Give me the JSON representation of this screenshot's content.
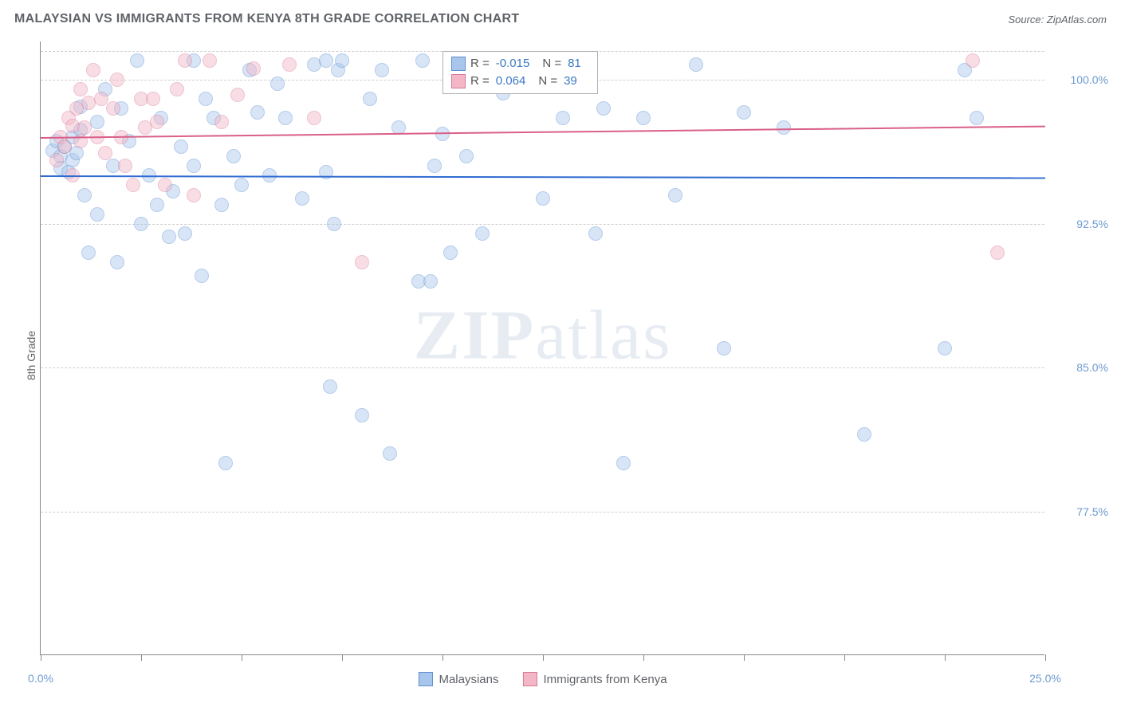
{
  "title": "MALAYSIAN VS IMMIGRANTS FROM KENYA 8TH GRADE CORRELATION CHART",
  "source": "Source: ZipAtlas.com",
  "ylabel": "8th Grade",
  "watermark_a": "ZIP",
  "watermark_b": "atlas",
  "chart": {
    "type": "scatter",
    "xlim": [
      0,
      25
    ],
    "ylim": [
      70,
      102
    ],
    "background_color": "#ffffff",
    "grid_color": "#cfcfcf",
    "yticks": [
      {
        "v": 100.0,
        "label": "100.0%"
      },
      {
        "v": 92.5,
        "label": "92.5%"
      },
      {
        "v": 85.0,
        "label": "85.0%"
      },
      {
        "v": 77.5,
        "label": "77.5%"
      }
    ],
    "xticks_major": [
      0,
      5,
      10,
      15,
      20,
      25
    ],
    "xticks_minor": [
      2.5,
      7.5,
      12.5,
      17.5,
      22.5
    ],
    "xlabels": [
      {
        "v": 0,
        "label": "0.0%"
      },
      {
        "v": 25,
        "label": "25.0%"
      }
    ],
    "marker_radius": 9,
    "marker_opacity": 0.45,
    "series": [
      {
        "name": "Malaysians",
        "fill": "#a8c6ec",
        "stroke": "#5d8fd0",
        "R": "-0.015",
        "N": "81",
        "regression": {
          "y0": 95.0,
          "y1": 94.9,
          "color": "#2f6bd0",
          "width": 2
        },
        "points": [
          {
            "x": 0.3,
            "y": 96.3
          },
          {
            "x": 0.4,
            "y": 96.8
          },
          {
            "x": 0.5,
            "y": 96.0
          },
          {
            "x": 0.5,
            "y": 95.4
          },
          {
            "x": 0.6,
            "y": 96.5
          },
          {
            "x": 0.7,
            "y": 95.2
          },
          {
            "x": 0.8,
            "y": 97.0
          },
          {
            "x": 0.8,
            "y": 95.8
          },
          {
            "x": 0.9,
            "y": 96.2
          },
          {
            "x": 1.0,
            "y": 98.6
          },
          {
            "x": 1.0,
            "y": 97.4
          },
          {
            "x": 1.1,
            "y": 94.0
          },
          {
            "x": 1.2,
            "y": 91.0
          },
          {
            "x": 1.4,
            "y": 93.0
          },
          {
            "x": 1.4,
            "y": 97.8
          },
          {
            "x": 1.6,
            "y": 99.5
          },
          {
            "x": 1.8,
            "y": 95.5
          },
          {
            "x": 1.9,
            "y": 90.5
          },
          {
            "x": 2.0,
            "y": 98.5
          },
          {
            "x": 2.2,
            "y": 96.8
          },
          {
            "x": 2.4,
            "y": 101.0
          },
          {
            "x": 2.5,
            "y": 92.5
          },
          {
            "x": 2.7,
            "y": 95.0
          },
          {
            "x": 2.9,
            "y": 93.5
          },
          {
            "x": 3.0,
            "y": 98.0
          },
          {
            "x": 3.2,
            "y": 91.8
          },
          {
            "x": 3.3,
            "y": 94.2
          },
          {
            "x": 3.5,
            "y": 96.5
          },
          {
            "x": 3.6,
            "y": 92.0
          },
          {
            "x": 3.8,
            "y": 101.0
          },
          {
            "x": 3.8,
            "y": 95.5
          },
          {
            "x": 4.0,
            "y": 89.8
          },
          {
            "x": 4.1,
            "y": 99.0
          },
          {
            "x": 4.3,
            "y": 98.0
          },
          {
            "x": 4.5,
            "y": 93.5
          },
          {
            "x": 4.6,
            "y": 80.0
          },
          {
            "x": 4.8,
            "y": 96.0
          },
          {
            "x": 5.0,
            "y": 94.5
          },
          {
            "x": 5.2,
            "y": 100.5
          },
          {
            "x": 5.4,
            "y": 98.3
          },
          {
            "x": 5.7,
            "y": 95.0
          },
          {
            "x": 5.9,
            "y": 99.8
          },
          {
            "x": 6.1,
            "y": 98.0
          },
          {
            "x": 6.5,
            "y": 93.8
          },
          {
            "x": 6.8,
            "y": 100.8
          },
          {
            "x": 7.1,
            "y": 95.2
          },
          {
            "x": 7.1,
            "y": 101.0
          },
          {
            "x": 7.2,
            "y": 84.0
          },
          {
            "x": 7.3,
            "y": 92.5
          },
          {
            "x": 7.4,
            "y": 100.5
          },
          {
            "x": 7.5,
            "y": 101.0
          },
          {
            "x": 8.0,
            "y": 82.5
          },
          {
            "x": 8.2,
            "y": 99.0
          },
          {
            "x": 8.5,
            "y": 100.5
          },
          {
            "x": 8.7,
            "y": 80.5
          },
          {
            "x": 8.9,
            "y": 97.5
          },
          {
            "x": 9.4,
            "y": 89.5
          },
          {
            "x": 9.5,
            "y": 101.0
          },
          {
            "x": 9.7,
            "y": 89.5
          },
          {
            "x": 9.8,
            "y": 95.5
          },
          {
            "x": 10.0,
            "y": 97.2
          },
          {
            "x": 10.2,
            "y": 91.0
          },
          {
            "x": 10.6,
            "y": 96.0
          },
          {
            "x": 11.0,
            "y": 92.0
          },
          {
            "x": 11.5,
            "y": 99.3
          },
          {
            "x": 12.5,
            "y": 93.8
          },
          {
            "x": 13.0,
            "y": 98.0
          },
          {
            "x": 13.2,
            "y": 101.0
          },
          {
            "x": 13.8,
            "y": 92.0
          },
          {
            "x": 14.0,
            "y": 98.5
          },
          {
            "x": 14.5,
            "y": 80.0
          },
          {
            "x": 15.0,
            "y": 98.0
          },
          {
            "x": 15.8,
            "y": 94.0
          },
          {
            "x": 16.3,
            "y": 100.8
          },
          {
            "x": 17.0,
            "y": 86.0
          },
          {
            "x": 17.5,
            "y": 98.3
          },
          {
            "x": 18.5,
            "y": 97.5
          },
          {
            "x": 20.5,
            "y": 81.5
          },
          {
            "x": 22.5,
            "y": 86.0
          },
          {
            "x": 23.0,
            "y": 100.5
          },
          {
            "x": 23.3,
            "y": 98.0
          }
        ]
      },
      {
        "name": "Immigrants from Kenya",
        "fill": "#f2b6c6",
        "stroke": "#d67a96",
        "R": "0.064",
        "N": "39",
        "regression": {
          "y0": 97.0,
          "y1": 97.6,
          "color": "#da5f88",
          "width": 2
        },
        "points": [
          {
            "x": 0.4,
            "y": 95.8
          },
          {
            "x": 0.5,
            "y": 97.0
          },
          {
            "x": 0.6,
            "y": 96.5
          },
          {
            "x": 0.7,
            "y": 98.0
          },
          {
            "x": 0.8,
            "y": 97.6
          },
          {
            "x": 0.8,
            "y": 95.0
          },
          {
            "x": 0.9,
            "y": 98.5
          },
          {
            "x": 1.0,
            "y": 96.8
          },
          {
            "x": 1.0,
            "y": 99.5
          },
          {
            "x": 1.1,
            "y": 97.5
          },
          {
            "x": 1.2,
            "y": 98.8
          },
          {
            "x": 1.3,
            "y": 100.5
          },
          {
            "x": 1.4,
            "y": 97.0
          },
          {
            "x": 1.5,
            "y": 99.0
          },
          {
            "x": 1.6,
            "y": 96.2
          },
          {
            "x": 1.8,
            "y": 98.5
          },
          {
            "x": 1.9,
            "y": 100.0
          },
          {
            "x": 2.0,
            "y": 97.0
          },
          {
            "x": 2.1,
            "y": 95.5
          },
          {
            "x": 2.3,
            "y": 94.5
          },
          {
            "x": 2.5,
            "y": 99.0
          },
          {
            "x": 2.6,
            "y": 97.5
          },
          {
            "x": 2.8,
            "y": 99.0
          },
          {
            "x": 2.9,
            "y": 97.8
          },
          {
            "x": 3.1,
            "y": 94.5
          },
          {
            "x": 3.4,
            "y": 99.5
          },
          {
            "x": 3.6,
            "y": 101.0
          },
          {
            "x": 3.8,
            "y": 94.0
          },
          {
            "x": 4.2,
            "y": 101.0
          },
          {
            "x": 4.5,
            "y": 97.8
          },
          {
            "x": 4.9,
            "y": 99.2
          },
          {
            "x": 5.3,
            "y": 100.6
          },
          {
            "x": 6.2,
            "y": 100.8
          },
          {
            "x": 6.8,
            "y": 98.0
          },
          {
            "x": 8.0,
            "y": 90.5
          },
          {
            "x": 10.8,
            "y": 101.0
          },
          {
            "x": 13.0,
            "y": 101.0
          },
          {
            "x": 23.2,
            "y": 101.0
          },
          {
            "x": 23.8,
            "y": 91.0
          }
        ]
      }
    ]
  },
  "legend_top": {
    "r_label": "R =",
    "n_label": "N ="
  },
  "colors": {
    "axis": "#888888",
    "tick_text": "#6e9ad1",
    "title_text": "#5f6368"
  }
}
